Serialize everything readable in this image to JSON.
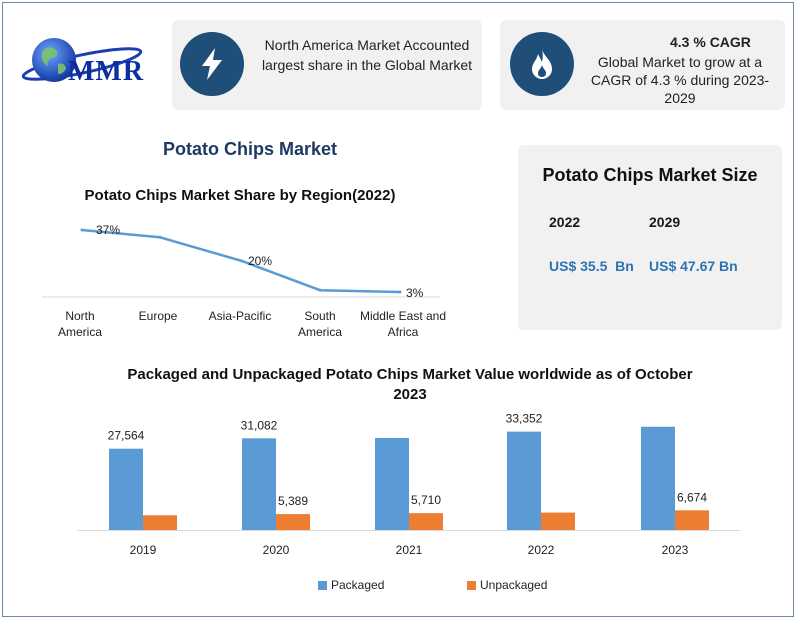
{
  "brand": {
    "logo_text": "MMR"
  },
  "info_cards": {
    "region": {
      "icon": "lightning-bolt-icon",
      "text": "North America Market Accounted largest share in the Global Market"
    },
    "cagr": {
      "icon": "flame-icon",
      "heading": "4.3 % CAGR",
      "text": "Global Market to grow at a CAGR of 4.3 % during 2023-2029"
    }
  },
  "market_title": "Potato Chips Market",
  "size_panel": {
    "title": "Potato Chips Market Size",
    "years": [
      "2022",
      "2029"
    ],
    "values": [
      "US$ 35.5  Bn",
      "US$ 47.67 Bn"
    ]
  },
  "colors": {
    "navy": "#1f4e79",
    "accent_blue": "#2e74b5",
    "packaged": "#5b9bd5",
    "unpackaged": "#ed7d31"
  },
  "chart_data": [
    {
      "type": "line",
      "title": "Potato Chips Market Share by Region(2022)",
      "categories": [
        "North America",
        "Europe",
        "Asia-Pacific",
        "South America",
        "Middle East and Africa"
      ],
      "values": [
        37,
        33,
        20,
        4,
        3
      ],
      "data_labels": [
        "37%",
        "",
        "20%",
        "",
        "3%"
      ],
      "ylim": [
        0,
        40
      ],
      "grid": false
    },
    {
      "type": "bar",
      "title": "Packaged and Unpackaged Potato Chips Market Value worldwide as of October 2023",
      "categories": [
        "2019",
        "2020",
        "2021",
        "2022",
        "2023"
      ],
      "series": [
        {
          "name": "Packaged",
          "values": [
            27564,
            31082,
            31200,
            33352,
            35000
          ],
          "labels": [
            "27,564",
            "31,082",
            "",
            "33,352",
            ""
          ]
        },
        {
          "name": "Unpackaged",
          "values": [
            5000,
            5389,
            5710,
            5900,
            6674
          ],
          "labels": [
            "",
            "5,389",
            "5,710",
            "",
            "6,674"
          ]
        }
      ],
      "ylim": [
        0,
        40000
      ],
      "legend": "bottom",
      "grid": false
    }
  ]
}
